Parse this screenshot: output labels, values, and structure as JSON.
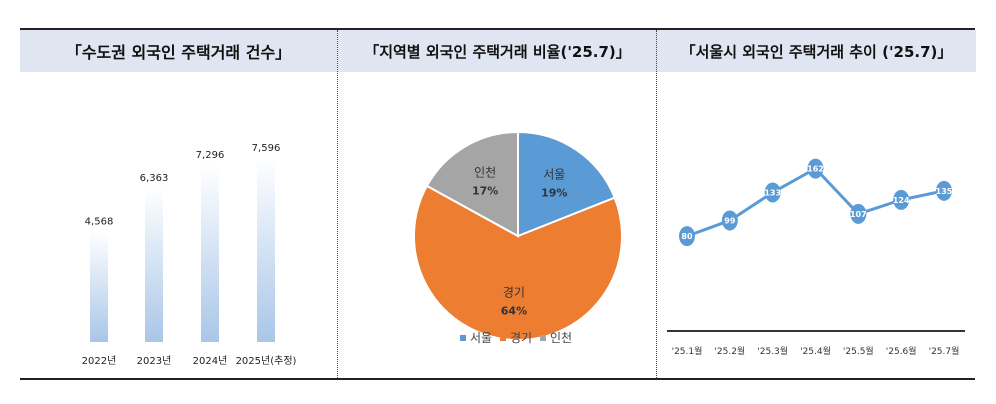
{
  "charts": [
    {
      "title": "「수도권 외국인 주택거래 건수」",
      "chart_data": {
        "type": "bar",
        "title": "「수도권 외국인 주택거래 건수」",
        "categories": [
          "2022년",
          "2023년",
          "2024년",
          "2025년(추정)"
        ],
        "values": [
          4568,
          6363,
          7296,
          7596
        ],
        "value_labels": [
          "4,568",
          "6,363",
          "7,296",
          "7,596"
        ],
        "ylim": [
          0,
          8500
        ],
        "grid": false,
        "bar_color_top": "#ffffff",
        "bar_color_bottom": "#a9c6e8"
      }
    },
    {
      "title": "「지역별 외국인 주택거래 비율('25.7)」",
      "chart_data": {
        "type": "pie",
        "title": "「지역별 외국인 주택거래 비율('25.7)」",
        "labels": [
          "서울",
          "경기",
          "인천"
        ],
        "values": [
          19,
          64,
          17
        ],
        "value_labels": [
          "19%",
          "64%",
          "17%"
        ],
        "colors": [
          "#5b9bd5",
          "#ed7d31",
          "#a5a5a5"
        ],
        "legend": "bottom"
      }
    },
    {
      "title": "「서울시 외국인 주택거래 추이 ('25.7)」",
      "chart_data": {
        "type": "line",
        "title": "「서울시 외국인 주택거래 추이 ('25.7)」",
        "categories": [
          "'25.1월",
          "'25.2월",
          "'25.3월",
          "'25.4월",
          "'25.5월",
          "'25.6월",
          "'25.7월"
        ],
        "values": [
          80,
          99,
          133,
          162,
          107,
          124,
          135
        ],
        "ylim": [
          0,
          170
        ],
        "color": "#5b9bd5",
        "grid": false
      }
    }
  ]
}
